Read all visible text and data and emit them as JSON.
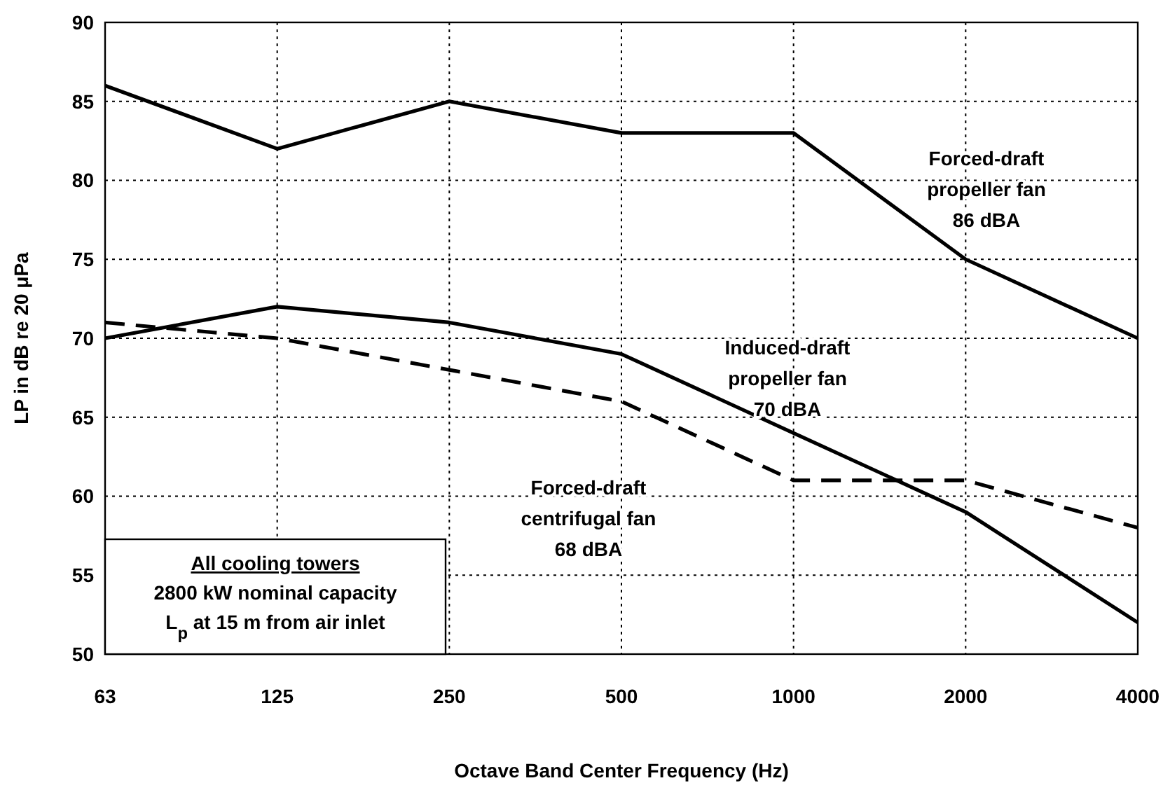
{
  "chart_data": {
    "type": "line",
    "xlabel": "Octave Band Center Frequency (Hz)",
    "ylabel": "LP in dB re 20 μPa",
    "categories": [
      "63",
      "125",
      "250",
      "500",
      "1000",
      "2000",
      "4000"
    ],
    "series": [
      {
        "name": "Forced-draft propeller fan 86 dBA",
        "color": "#000000",
        "values": [
          86,
          82,
          85,
          83,
          83,
          75,
          70
        ]
      },
      {
        "name": "Induced-draft propeller fan 70 dBA",
        "color": "#000000",
        "values": [
          70,
          72,
          71,
          69,
          64,
          59,
          52
        ]
      },
      {
        "name": "Forced-draft centrifugal fan 68 dBA",
        "color": "#000000",
        "values": [
          71,
          70,
          68,
          66,
          61,
          61,
          58
        ],
        "line_style": "dashed"
      }
    ],
    "ylim": [
      50,
      90
    ],
    "yticks": [
      50,
      55,
      60,
      65,
      70,
      75,
      80,
      85,
      90
    ],
    "grid": true,
    "legend": false,
    "marker": "none",
    "annotations": [
      "All cooling towers",
      "2800 kW nominal capacity",
      "L$_{p}$ at 15 m from air inlet"
    ]
  }
}
